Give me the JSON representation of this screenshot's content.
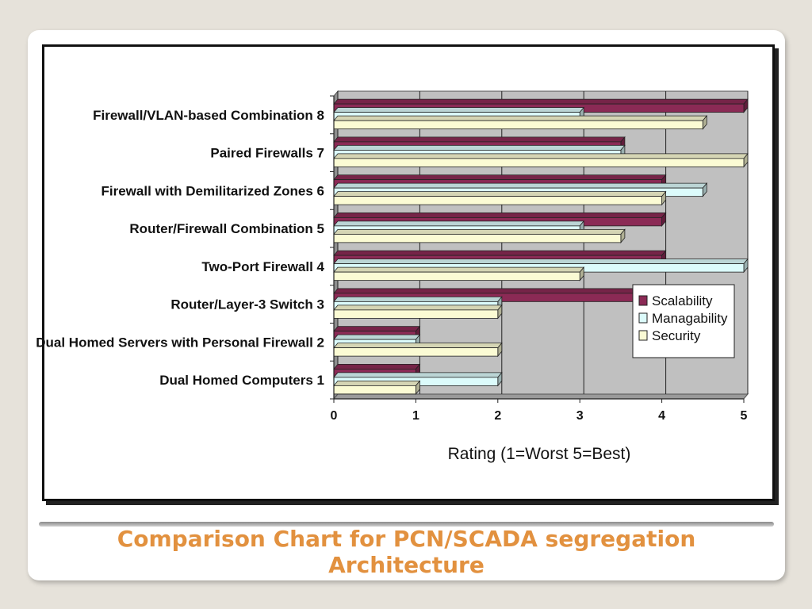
{
  "caption": {
    "line1": "Comparison Chart for PCN/SCADA segregation",
    "line2": "Architecture"
  },
  "chart_data": {
    "type": "bar",
    "orientation": "horizontal",
    "categories": [
      "Firewall/VLAN-based Combination 8",
      "Paired Firewalls 7",
      "Firewall with Demilitarized Zones 6",
      "Router/Firewall Combination 5",
      "Two-Port Firewall 4",
      "Router/Layer-3 Switch 3",
      "Dual Homed Servers with Personal Firewall 2",
      "Dual Homed Computers 1"
    ],
    "series": [
      {
        "name": "Scalability",
        "color": "#8b2a55",
        "values": [
          5,
          3.5,
          4,
          4,
          4,
          4,
          1,
          1
        ]
      },
      {
        "name": "Managability",
        "color": "#dcfbfb",
        "values": [
          3,
          3.5,
          4.5,
          3,
          5,
          2,
          1,
          2
        ]
      },
      {
        "name": "Security",
        "color": "#fbfbd4",
        "values": [
          4.5,
          5,
          4,
          3.5,
          3,
          2,
          2,
          1
        ]
      }
    ],
    "xlabel": "Rating (1=Worst  5=Best)",
    "xlim": [
      0,
      5
    ],
    "xticks": [
      "0",
      "1",
      "2",
      "3",
      "4",
      "5"
    ],
    "grid": true,
    "style": "3d",
    "legend_position": "lower-right"
  },
  "colors": {
    "plot_background": "#c0c0c0",
    "plot_floor": "#9a9a9a",
    "caption": "#e2913f"
  }
}
